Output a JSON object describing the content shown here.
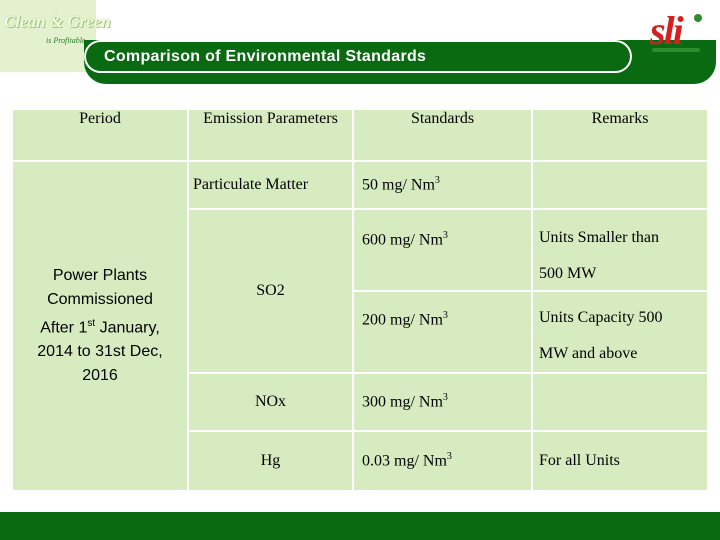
{
  "logo_left": {
    "line1": "Clean & Green",
    "line2": "is Profitable"
  },
  "title": "Comparison of Environmental Standards",
  "logo_right": {
    "text": "sli"
  },
  "table": {
    "headers": {
      "period": "Period",
      "emission": "Emission Parameters",
      "standards": "Standards",
      "remarks": "Remarks"
    },
    "period": {
      "line1": "Power Plants",
      "line2": "Commissioned",
      "line3_a": "After 1",
      "line3_sup": "st",
      "line3_b": " January,",
      "line4": "2014 to 31st Dec,",
      "line5": "2016"
    },
    "rows": {
      "pm": {
        "param": "Particulate Matter",
        "standard": "50 mg/ Nm",
        "sup": "3",
        "remark": ""
      },
      "so2": {
        "param": "SO2",
        "standard1": "600 mg/ Nm",
        "sup1": "3",
        "remark1_a": "Units Smaller than",
        "remark1_b": "500 MW",
        "standard2": "200 mg/ Nm",
        "sup2": "3",
        "remark2_a": "Units Capacity 500",
        "remark2_b": "MW and above"
      },
      "nox": {
        "param": "NOx",
        "standard": "300 mg/ Nm",
        "sup": "3",
        "remark": ""
      },
      "hg": {
        "param": "Hg",
        "standard": "0.03 mg/ Nm",
        "sup": "3",
        "remark": "For all Units"
      }
    }
  },
  "colors": {
    "green": "#0a6a12",
    "table_bg": "#d6ecc0",
    "logo_red": "#d42020"
  }
}
